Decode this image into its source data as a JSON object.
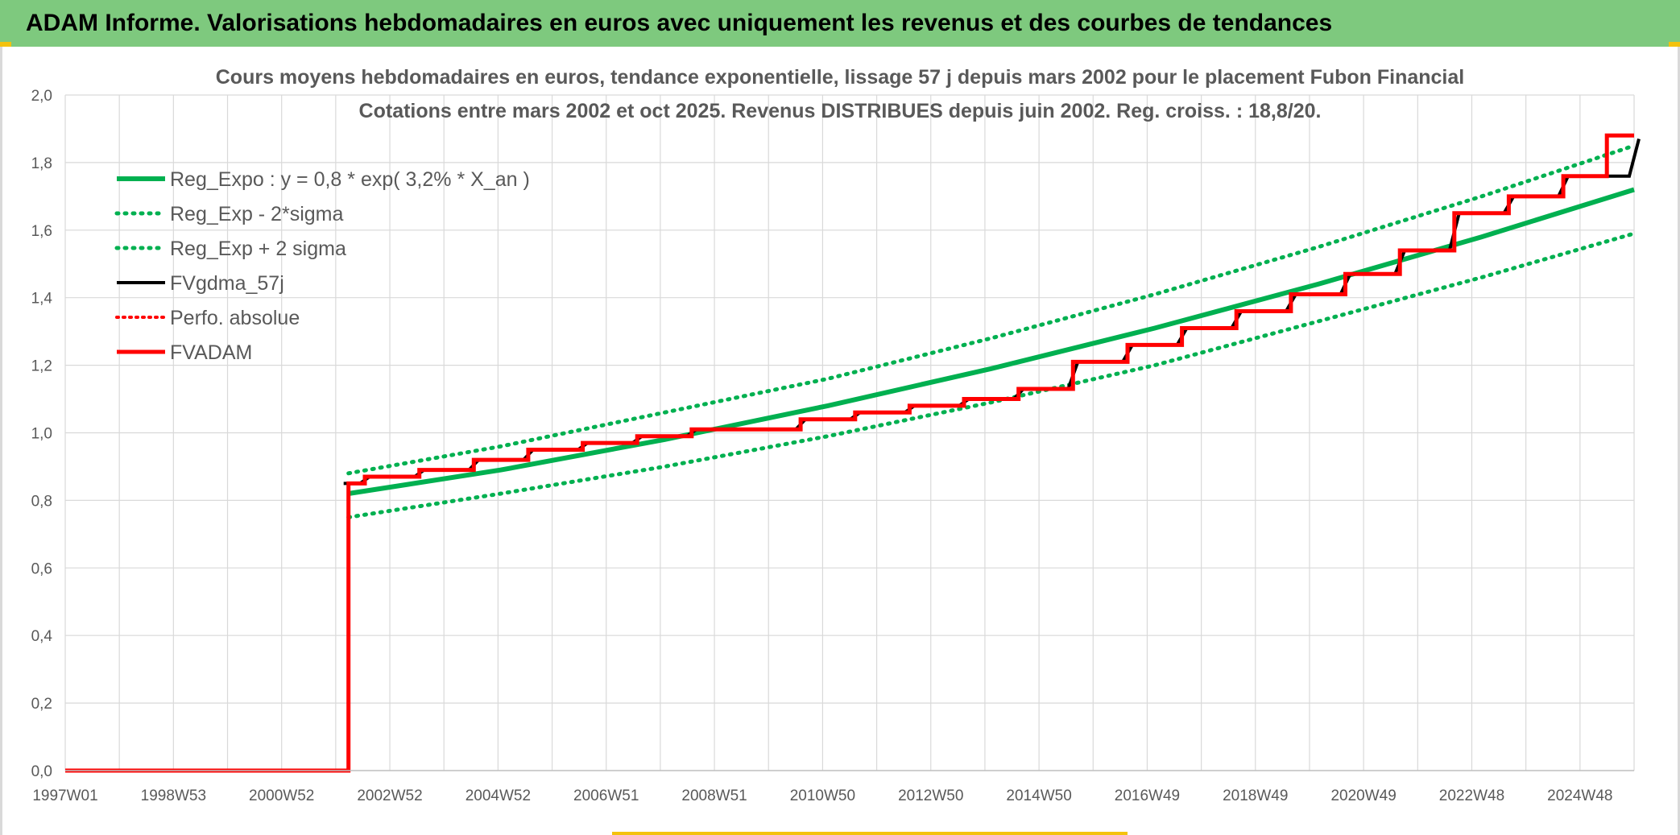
{
  "banner": {
    "title": "ADAM Informe. Valorisations hebdomadaires en euros avec uniquement les revenus et des courbes de tendances"
  },
  "colors": {
    "banner": "#7ec97e",
    "green": "#00b050",
    "black": "#000000",
    "red": "#ff0000",
    "grid": "#d9d9d9",
    "text": "#595959"
  },
  "chart_data": {
    "type": "line",
    "title": "Cours moyens hebdomadaires en euros, tendance exponentielle, lissage 57 j depuis mars 2002 pour le placement Fubon Financial",
    "subtitle": "Cotations entre mars 2002 et oct 2025. Revenus DISTRIBUES depuis juin 2002. Reg. croiss. : 18,8/20.",
    "xlabel": "",
    "ylabel": "",
    "x_ticks": [
      "1997W01",
      "1998W53",
      "2000W52",
      "2002W52",
      "2004W52",
      "2006W51",
      "2008W51",
      "2010W50",
      "2012W50",
      "2014W50",
      "2016W49",
      "2018W49",
      "2020W49",
      "2022W48",
      "2024W48"
    ],
    "y_ticks": [
      "0,0",
      "0,2",
      "0,4",
      "0,6",
      "0,8",
      "1,0",
      "1,2",
      "1,4",
      "1,6",
      "1,8",
      "2,0"
    ],
    "xlim": [
      1997.0,
      2025.8
    ],
    "ylim": [
      0,
      2
    ],
    "grid": true,
    "legend_position": "top-left",
    "series": [
      {
        "name": "Reg_Expo : y = 0,8 * exp( 3,2% *  X_an )",
        "style": "solid-green",
        "x": [
          2002.2,
          2005,
          2008,
          2011,
          2014,
          2017,
          2020,
          2023,
          2025.8
        ],
        "values": [
          0.82,
          0.89,
          0.98,
          1.08,
          1.19,
          1.31,
          1.44,
          1.58,
          1.72
        ]
      },
      {
        "name": "Reg_Exp - 2*sigma",
        "style": "dotted-green",
        "x": [
          2002.2,
          2005,
          2008,
          2011,
          2014,
          2017,
          2020,
          2023,
          2025.8
        ],
        "values": [
          0.75,
          0.82,
          0.9,
          0.99,
          1.09,
          1.2,
          1.33,
          1.46,
          1.59
        ]
      },
      {
        "name": "Reg_Exp + 2 sigma",
        "style": "dotted-green",
        "x": [
          2002.2,
          2005,
          2008,
          2011,
          2014,
          2017,
          2020,
          2023,
          2025.8
        ],
        "values": [
          0.88,
          0.96,
          1.06,
          1.16,
          1.28,
          1.41,
          1.55,
          1.7,
          1.85
        ]
      },
      {
        "name": "FVgdma_57j",
        "style": "solid-black",
        "x": [
          2002.2,
          2002.5,
          2003.5,
          2004.5,
          2005.5,
          2006.5,
          2007.5,
          2008.5,
          2009.5,
          2010.5,
          2011.5,
          2012.5,
          2013.5,
          2014.5,
          2015.5,
          2016.5,
          2017.5,
          2018.5,
          2019.5,
          2020.5,
          2021.5,
          2022.5,
          2023.5,
          2024.5,
          2025.8
        ],
        "values": [
          0.85,
          0.87,
          0.89,
          0.92,
          0.95,
          0.97,
          0.99,
          1.01,
          1.01,
          1.04,
          1.06,
          1.08,
          1.1,
          1.13,
          1.21,
          1.26,
          1.31,
          1.36,
          1.41,
          1.47,
          1.54,
          1.65,
          1.7,
          1.76,
          1.87
        ]
      },
      {
        "name": "Perfo. absolue",
        "style": "dotted-red",
        "x": [],
        "values": []
      },
      {
        "name": "FVADAM",
        "style": "step-red",
        "x": [
          1997.0,
          2002.15,
          2002.2,
          2002.5,
          2003.5,
          2004.5,
          2005.5,
          2006.5,
          2007.5,
          2008.5,
          2009.5,
          2010.5,
          2011.5,
          2012.5,
          2013.5,
          2014.5,
          2015.5,
          2016.5,
          2017.5,
          2018.5,
          2019.5,
          2020.5,
          2021.5,
          2022.5,
          2023.5,
          2024.5,
          2025.3,
          2025.8
        ],
        "values": [
          0.0,
          0.0,
          0.85,
          0.87,
          0.89,
          0.92,
          0.95,
          0.97,
          0.99,
          1.01,
          1.01,
          1.04,
          1.06,
          1.08,
          1.1,
          1.13,
          1.21,
          1.26,
          1.31,
          1.36,
          1.41,
          1.47,
          1.54,
          1.65,
          1.7,
          1.76,
          1.88,
          1.88
        ]
      }
    ]
  }
}
